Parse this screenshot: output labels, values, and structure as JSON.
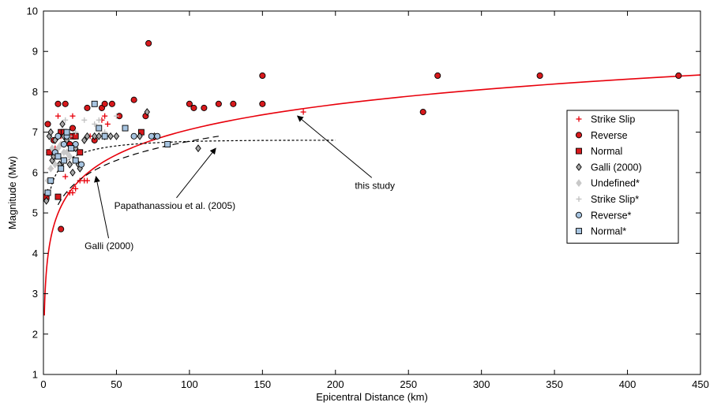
{
  "chart_data": {
    "type": "scatter",
    "title": "",
    "xlabel": "Epicentral Distance (km)",
    "ylabel": "Magnitude (Mw)",
    "xlim": [
      0,
      450
    ],
    "ylim": [
      1,
      10
    ],
    "xticks": [
      0,
      50,
      100,
      150,
      200,
      250,
      300,
      350,
      400,
      450
    ],
    "yticks": [
      1,
      2,
      3,
      4,
      5,
      6,
      7,
      8,
      9,
      10
    ],
    "grid": false,
    "legend_position": "right",
    "series": [
      {
        "name": "Strike Slip",
        "marker": "plus",
        "color": "#e8000b",
        "points": [
          [
            5,
            6.1
          ],
          [
            8,
            6.6
          ],
          [
            10,
            7.4
          ],
          [
            12,
            6.9
          ],
          [
            15,
            6.3
          ],
          [
            15,
            5.9
          ],
          [
            18,
            5.5
          ],
          [
            20,
            5.5
          ],
          [
            20,
            7.4
          ],
          [
            22,
            5.6
          ],
          [
            25,
            5.8
          ],
          [
            28,
            5.8
          ],
          [
            30,
            5.8
          ],
          [
            32,
            6.9
          ],
          [
            40,
            7.3
          ],
          [
            42,
            7.4
          ],
          [
            44,
            7.2
          ],
          [
            178,
            7.5
          ]
        ]
      },
      {
        "name": "Reverse",
        "marker": "circle",
        "color": "#d7191c",
        "points": [
          [
            3,
            7.2
          ],
          [
            4,
            6.5
          ],
          [
            7,
            6.8
          ],
          [
            10,
            7.7
          ],
          [
            12,
            4.6
          ],
          [
            15,
            7.7
          ],
          [
            18,
            6.7
          ],
          [
            20,
            7.1
          ],
          [
            30,
            7.6
          ],
          [
            35,
            6.8
          ],
          [
            40,
            7.6
          ],
          [
            42,
            7.7
          ],
          [
            47,
            7.7
          ],
          [
            52,
            7.4
          ],
          [
            62,
            7.8
          ],
          [
            70,
            7.4
          ],
          [
            72,
            9.2
          ],
          [
            100,
            7.7
          ],
          [
            103,
            7.6
          ],
          [
            110,
            7.6
          ],
          [
            120,
            7.7
          ],
          [
            130,
            7.7
          ],
          [
            150,
            7.7
          ],
          [
            150,
            8.4
          ],
          [
            260,
            7.5
          ],
          [
            270,
            8.4
          ],
          [
            340,
            8.4
          ],
          [
            435,
            8.4
          ]
        ]
      },
      {
        "name": "Normal",
        "marker": "square",
        "color": "#d7191c",
        "points": [
          [
            2,
            5.4
          ],
          [
            4,
            6.5
          ],
          [
            10,
            5.4
          ],
          [
            12,
            7.0
          ],
          [
            14,
            7.0
          ],
          [
            20,
            6.9
          ],
          [
            22,
            6.9
          ],
          [
            25,
            6.5
          ],
          [
            67,
            7.0
          ]
        ]
      },
      {
        "name": "Galli  (2000)",
        "marker": "diamond",
        "color": "#a8a8a8",
        "points": [
          [
            2,
            5.3
          ],
          [
            3,
            5.5
          ],
          [
            4,
            6.9
          ],
          [
            5,
            7.0
          ],
          [
            6,
            6.3
          ],
          [
            7,
            6.4
          ],
          [
            8,
            6.8
          ],
          [
            10,
            6.9
          ],
          [
            11,
            6.2
          ],
          [
            13,
            7.2
          ],
          [
            14,
            6.9
          ],
          [
            16,
            6.8
          ],
          [
            18,
            6.2
          ],
          [
            20,
            6.0
          ],
          [
            22,
            6.6
          ],
          [
            24,
            6.2
          ],
          [
            25,
            6.1
          ],
          [
            28,
            6.8
          ],
          [
            30,
            6.9
          ],
          [
            35,
            6.9
          ],
          [
            38,
            6.9
          ],
          [
            42,
            6.9
          ],
          [
            46,
            6.9
          ],
          [
            50,
            6.9
          ],
          [
            66,
            6.9
          ],
          [
            71,
            7.5
          ],
          [
            76,
            6.9
          ],
          [
            106,
            6.6
          ]
        ]
      },
      {
        "name": "Undefined*",
        "marker": "diamond",
        "color": "#c8c8c8",
        "points": [
          [
            3,
            5.8
          ],
          [
            5,
            6.1
          ],
          [
            6,
            6.6
          ],
          [
            8,
            6.2
          ],
          [
            10,
            6.6
          ],
          [
            12,
            6.7
          ],
          [
            14,
            6.5
          ],
          [
            15,
            6.3
          ],
          [
            16,
            6.5
          ],
          [
            18,
            6.4
          ]
        ]
      },
      {
        "name": "Strike Slip*",
        "marker": "plus",
        "color": "#c0c0c0",
        "points": [
          [
            15,
            7.3
          ],
          [
            18,
            6.9
          ],
          [
            22,
            7.0
          ],
          [
            28,
            7.3
          ],
          [
            35,
            7.2
          ],
          [
            38,
            7.3
          ],
          [
            42,
            7.0
          ],
          [
            50,
            7.4
          ]
        ]
      },
      {
        "name": "Reverse*",
        "marker": "circle",
        "color": "#a7c4e0",
        "points": [
          [
            8,
            6.5
          ],
          [
            10,
            6.9
          ],
          [
            14,
            6.7
          ],
          [
            16,
            6.9
          ],
          [
            22,
            6.7
          ],
          [
            26,
            6.2
          ],
          [
            62,
            6.9
          ],
          [
            74,
            6.9
          ],
          [
            78,
            6.9
          ]
        ]
      },
      {
        "name": "Normal*",
        "marker": "square",
        "color": "#a7c4e0",
        "points": [
          [
            3,
            5.5
          ],
          [
            5,
            5.8
          ],
          [
            10,
            6.4
          ],
          [
            12,
            6.1
          ],
          [
            14,
            6.3
          ],
          [
            16,
            7.0
          ],
          [
            19,
            6.6
          ],
          [
            22,
            6.3
          ],
          [
            35,
            7.7
          ],
          [
            38,
            7.1
          ],
          [
            42,
            6.9
          ],
          [
            56,
            7.1
          ],
          [
            85,
            6.7
          ]
        ]
      }
    ],
    "curves": [
      {
        "name": "this study",
        "style": "solid",
        "color": "#e8000b",
        "xrange": [
          0.6,
          450
        ],
        "formula": "0.9*ln(x) + 2.92"
      },
      {
        "name": "Papathanassiou et al. (2005)",
        "style": "dotted",
        "color": "#000000",
        "xrange": [
          5,
          200
        ]
      },
      {
        "name": "Galli (2000)",
        "style": "dashed",
        "color": "#000000",
        "xrange": [
          10,
          120
        ]
      }
    ],
    "annotations": [
      {
        "text": "Galli (2000)",
        "label_at": [
          45,
          4.1
        ],
        "arrow_to": [
          36,
          5.9
        ]
      },
      {
        "text": "Papathanassiou et al. (2005)",
        "label_at": [
          90,
          5.1
        ],
        "arrow_to": [
          118,
          6.6
        ]
      },
      {
        "text": "this study",
        "label_at": [
          227,
          5.6
        ],
        "arrow_to": [
          174,
          7.4
        ]
      }
    ]
  }
}
